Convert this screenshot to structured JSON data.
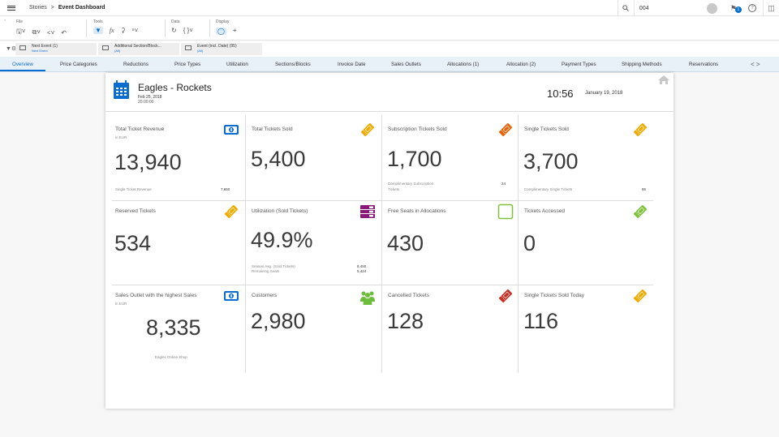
{
  "shell": {
    "breadcrumb_root": "Stories",
    "breadcrumb_sep": ">",
    "breadcrumb_current": "Event Dashboard",
    "search_value": "004",
    "notification_count": "1"
  },
  "toolbar": {
    "file_label": "File",
    "tools_label": "Tools",
    "data_label": "Data",
    "display_label": "Display"
  },
  "filters": [
    {
      "label": "Next Event (1)",
      "value": "Next Event"
    },
    {
      "label": "Additional Section/Block...",
      "value": "(All)"
    },
    {
      "label": "Event (incl. Date) (95)",
      "value": "(All)"
    }
  ],
  "tabs": [
    "Overview",
    "Price Categories",
    "Reductions",
    "Price Types",
    "Utilization",
    "Sections/Blocks",
    "Invoice Date",
    "Sales Outlets",
    "Allocations (1)",
    "Allocation (2)",
    "Payment Types",
    "Shipping Methods",
    "Reservations"
  ],
  "tab_arrows": "< >",
  "event": {
    "title": "Eagles - Rockets",
    "date": "Feb 25, 2018",
    "time_partial": "20:00:00",
    "clock": "10:56",
    "today": "January 19, 2018"
  },
  "kpis": {
    "total_revenue": {
      "title": "Total Ticket Revenue",
      "unit": "in EUR",
      "value": "13,940",
      "foot_label": "Single Ticket Revenue",
      "foot_value": "7,650"
    },
    "total_sold": {
      "title": "Total Tickets Sold",
      "value": "5,400"
    },
    "subscription_sold": {
      "title": "Subscription Tickets Sold",
      "value": "1,700",
      "foot_label_1": "Complimentary Subscription",
      "foot_label_2": "Tickets",
      "foot_value": "24"
    },
    "single_sold": {
      "title": "Single Tickets Sold",
      "value": "3,700",
      "foot_label": "Complimentary Single Tickets",
      "foot_value": "86"
    },
    "reserved": {
      "title": "Reserved Tickets",
      "value": "534"
    },
    "utilization": {
      "title": "Utilization (Sold Tickets)",
      "value": "49.9%",
      "foot_label_1": "Season Avg. (Sold Tickets)",
      "foot_label_2": "Remaining Seats",
      "foot_value_1": "8,450",
      "foot_value_2": "5,424"
    },
    "free_seats": {
      "title": "Free Seats in Allocations",
      "value": "430"
    },
    "accessed": {
      "title": "Tickets Accessed",
      "value": "0"
    },
    "top_outlet": {
      "title": "Sales Outlet with the highest Sales",
      "unit": "in EUR",
      "value": "8,335",
      "caption": "Eagles Online Shop"
    },
    "customers": {
      "title": "Customers",
      "value": "2,980"
    },
    "cancelled": {
      "title": "Cancelled Tickets",
      "value": "128"
    },
    "single_today": {
      "title": "Single Tickets Sold Today",
      "value": "116"
    }
  },
  "colors": {
    "accent": "#0a6ed1",
    "ticket_orange": "#f0ab00",
    "ticket_dark_orange": "#e8630a",
    "ticket_red": "#c62f21",
    "ticket_green": "#7ec13a",
    "customers_green": "#6bbd3a",
    "utilization_purple": "#8a1a7a"
  }
}
